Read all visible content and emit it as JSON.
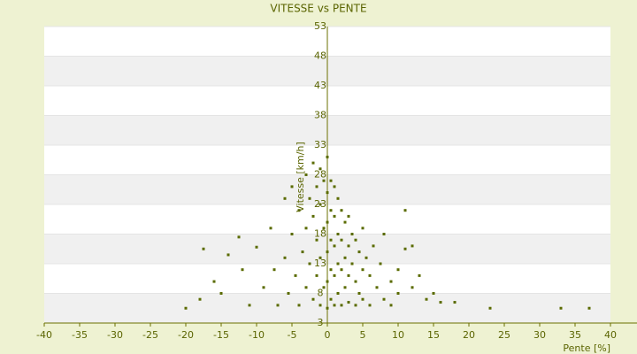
{
  "chart_data": {
    "type": "scatter",
    "title": "VITESSE vs PENTE",
    "x_label": "Pente [%]",
    "y_label": "Vitesse [km/h]",
    "xlim": [
      -40,
      40
    ],
    "xticks": [
      -40,
      -35,
      -30,
      -25,
      -20,
      -15,
      -10,
      -5,
      0,
      5,
      10,
      15,
      20,
      25,
      30,
      35,
      40
    ],
    "ylim": [
      3,
      53
    ],
    "yticks": [
      3,
      8,
      13,
      18,
      23,
      28,
      33,
      38,
      43,
      48,
      53
    ],
    "grid": true,
    "series": [
      {
        "name": "Vitesse",
        "color": "#5a6b00",
        "x": [
          -20,
          -18,
          -17.5,
          -16,
          -15,
          -14,
          -12.5,
          -12,
          -11,
          -10,
          -9,
          -8,
          -7.5,
          -7,
          -6,
          -6,
          -5.5,
          -5,
          -5,
          -4.5,
          -4,
          -4,
          -3.5,
          -3,
          -3,
          -3,
          -2.5,
          -2.5,
          -2,
          -2,
          -2,
          -1.5,
          -1.5,
          -1.5,
          -1,
          -1,
          -1,
          -1,
          -0.5,
          -0.5,
          -0.5,
          0,
          0,
          0,
          0,
          0,
          0,
          0.5,
          0.5,
          0.5,
          0.5,
          0.5,
          1,
          1,
          1,
          1,
          1,
          1.5,
          1.5,
          1.5,
          1.5,
          2,
          2,
          2,
          2,
          2.5,
          2.5,
          2.5,
          3,
          3,
          3,
          3,
          3.5,
          3.5,
          4,
          4,
          4,
          4.5,
          4.5,
          5,
          5,
          5,
          5.5,
          6,
          6,
          6.5,
          7,
          7.5,
          8,
          8,
          9,
          9,
          10,
          10,
          11,
          11,
          12,
          12,
          13,
          14,
          15,
          16,
          18,
          23,
          33,
          37
        ],
        "y": [
          5.5,
          7,
          15.5,
          10,
          8,
          14.5,
          17.5,
          12,
          6,
          15.8,
          9,
          19,
          12,
          6,
          24,
          14,
          8,
          26,
          18,
          11,
          22,
          6,
          15,
          28,
          19,
          9,
          24,
          13,
          30,
          21,
          7,
          26,
          17,
          11,
          29,
          23,
          14,
          6,
          27,
          19,
          9,
          31,
          25,
          20,
          15,
          10,
          5.5,
          27,
          22,
          17,
          12,
          7,
          26,
          21,
          16,
          11,
          6,
          24,
          18,
          13,
          8,
          22,
          17,
          12,
          6,
          20,
          14,
          9,
          21,
          16,
          11,
          6.5,
          18,
          13,
          17,
          10,
          6,
          15,
          8,
          19,
          12,
          7,
          14,
          11,
          6,
          16,
          9,
          13,
          7,
          18,
          10,
          6,
          12,
          8,
          22,
          15.5,
          16,
          9,
          11,
          7,
          8,
          6.5,
          6.5,
          5.5,
          5.5,
          5.5
        ]
      }
    ]
  }
}
